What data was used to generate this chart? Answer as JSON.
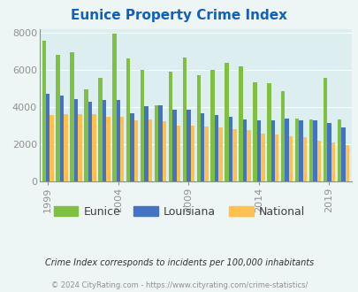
{
  "title": "Eunice Property Crime Index",
  "years": [
    1999,
    2000,
    2001,
    2002,
    2003,
    2004,
    2005,
    2006,
    2007,
    2008,
    2009,
    2010,
    2011,
    2012,
    2013,
    2014,
    2015,
    2016,
    2017,
    2018,
    2019,
    2020
  ],
  "eunice": [
    7600,
    6800,
    6950,
    4950,
    5550,
    7950,
    6600,
    6020,
    4080,
    5900,
    6650,
    5720,
    5990,
    6370,
    6210,
    5350,
    5280,
    4870,
    3360,
    3310,
    5580,
    3340
  ],
  "louisiana": [
    4720,
    4600,
    4420,
    4270,
    4380,
    4380,
    3680,
    4020,
    4080,
    3860,
    3840,
    3640,
    3560,
    3450,
    3330,
    3280,
    3260,
    3360,
    3270,
    3290,
    3120,
    2900
  ],
  "national": [
    3580,
    3620,
    3620,
    3600,
    3480,
    3470,
    3270,
    3340,
    3220,
    3000,
    2990,
    2940,
    2900,
    2800,
    2730,
    2580,
    2500,
    2440,
    2360,
    2200,
    2100,
    1950
  ],
  "bar_colors": [
    "#80c040",
    "#4472c4",
    "#ffc050"
  ],
  "bg_color": "#eef5f5",
  "plot_bg": "#ddeef0",
  "title_color": "#1060c0",
  "grid_color": "#ffffff",
  "tick_color": "#909090",
  "ylim": [
    0,
    8200
  ],
  "yticks": [
    0,
    2000,
    4000,
    6000,
    8000
  ],
  "footer_text1": "Crime Index corresponds to incidents per 100,000 inhabitants",
  "footer_text2": "© 2024 CityRating.com - https://www.cityrating.com/crime-statistics/",
  "legend_labels": [
    "Eunice",
    "Louisiana",
    "National"
  ],
  "tick_years": [
    1999,
    2004,
    2009,
    2014,
    2019
  ]
}
